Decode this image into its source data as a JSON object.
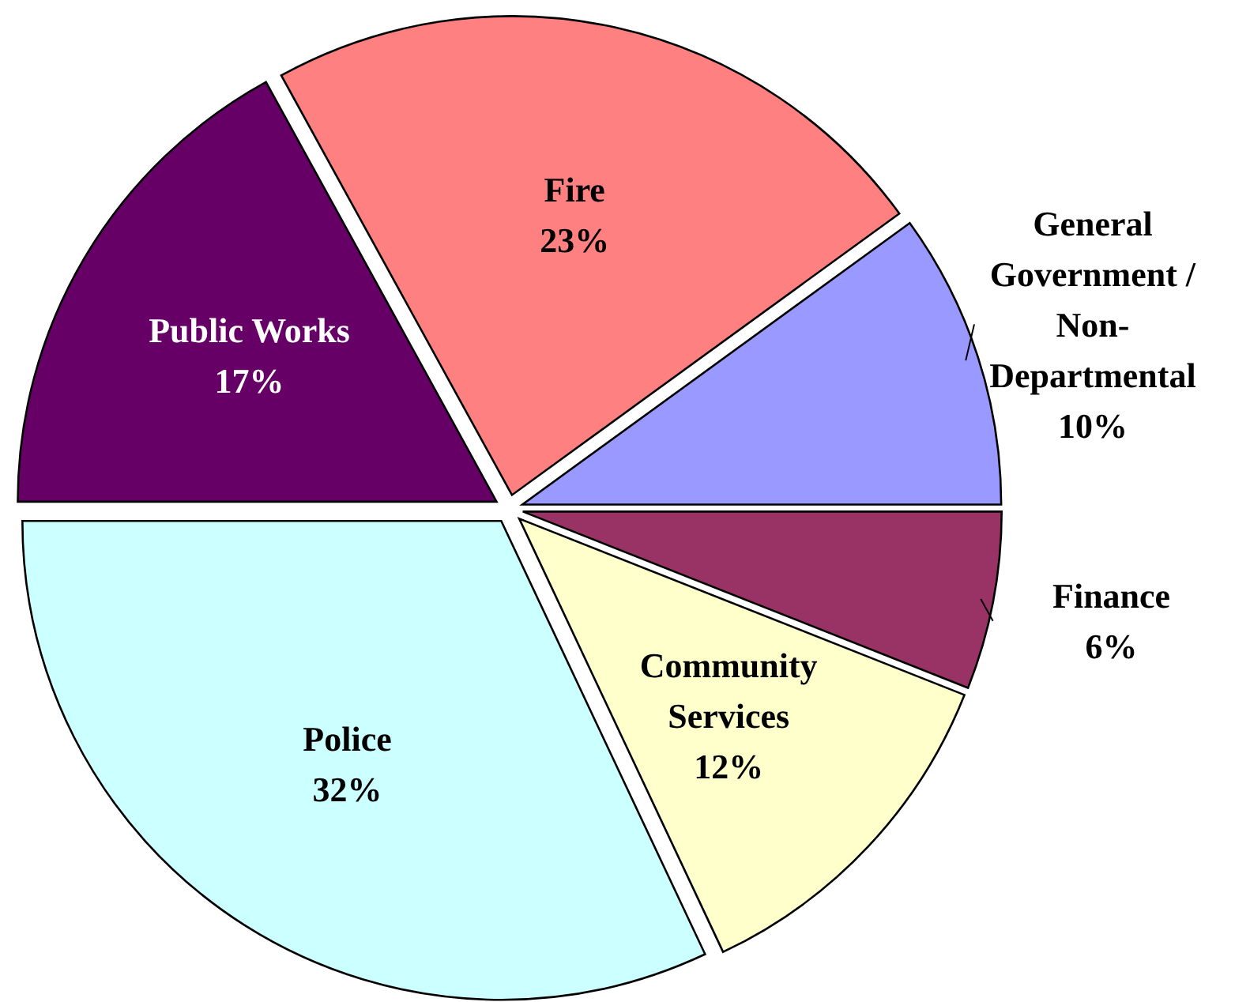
{
  "chart_data": {
    "type": "pie",
    "categories": [
      "General Government / Non-Departmental",
      "Finance",
      "Community Services",
      "Police",
      "Public Works",
      "Fire"
    ],
    "values": [
      10,
      6,
      12,
      32,
      17,
      23
    ],
    "colors": [
      "#9999ff",
      "#993366",
      "#ffffcc",
      "#ccffff",
      "#660066",
      "#ff8080"
    ],
    "value_labels": [
      "10%",
      "6%",
      "12%",
      "32%",
      "17%",
      "23%"
    ]
  }
}
